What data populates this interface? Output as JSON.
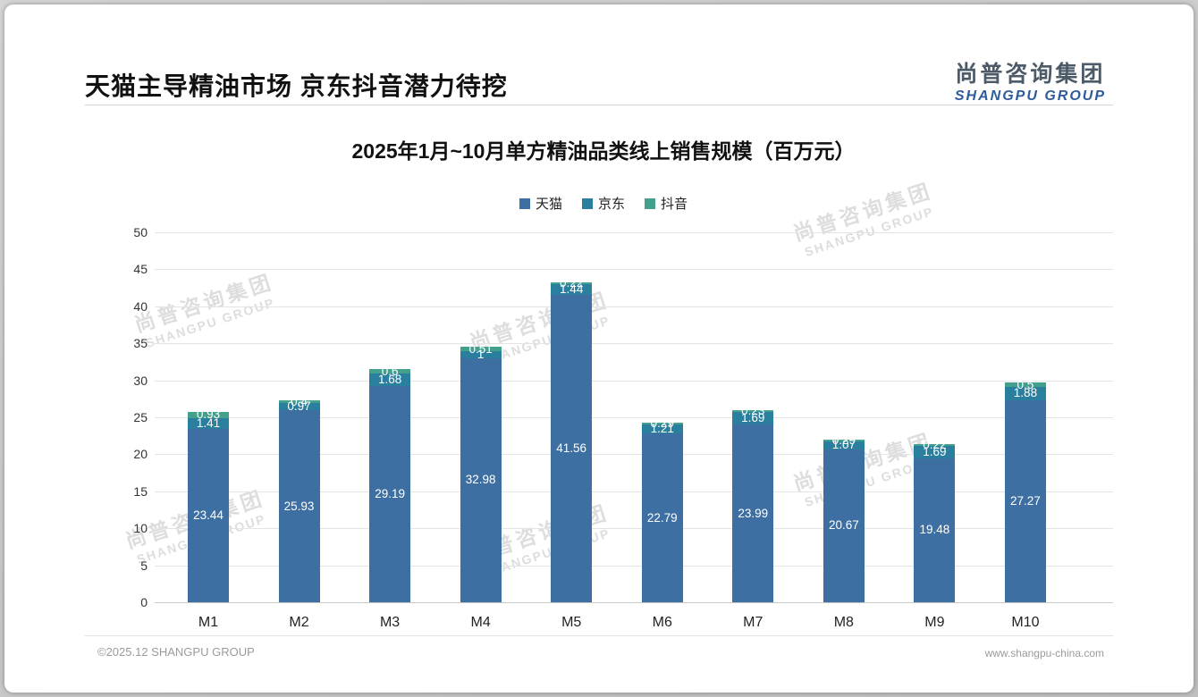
{
  "page": {
    "title": "天猫主导精油市场 京东抖音潜力待挖",
    "logo": {
      "cn": "尚普咨询集团",
      "en": "SHANGPU GROUP"
    },
    "watermark": {
      "cn": "尚普咨询集团",
      "en": "SHANGPU GROUP"
    },
    "footer_left": "©2025.12 SHANGPU GROUP",
    "footer_right": "www.shangpu-china.com"
  },
  "chart_data": {
    "type": "bar",
    "stacked": true,
    "title": "2025年1月~10月单方精油品类线上销售规模（百万元）",
    "categories": [
      "M1",
      "M2",
      "M3",
      "M4",
      "M5",
      "M6",
      "M7",
      "M8",
      "M9",
      "M10"
    ],
    "series": [
      {
        "name": "天猫",
        "color": "#3e6fa3",
        "values": [
          23.44,
          25.93,
          29.19,
          32.98,
          41.56,
          22.79,
          23.99,
          20.67,
          19.48,
          27.27
        ],
        "labels": [
          "23.44",
          "25.93",
          "29.19",
          "32.98",
          "41.56",
          "22.79",
          "23.99",
          "20.67",
          "19.48",
          "27.27"
        ]
      },
      {
        "name": "京东",
        "color": "#2b7f9e",
        "values": [
          1.41,
          0.97,
          1.68,
          1,
          1.44,
          1.21,
          1.69,
          1.07,
          1.69,
          1.88
        ],
        "labels": [
          "1.41",
          "0.97",
          "1.68",
          "1",
          "1.44",
          "1.21",
          "1.69",
          "1.07",
          "1.69",
          "1.88"
        ]
      },
      {
        "name": "抖音",
        "color": "#43a08d",
        "values": [
          0.93,
          0.4,
          0.6,
          0.51,
          0.22,
          0.29,
          0.23,
          0.29,
          0.22,
          0.5
        ],
        "labels": [
          "0.93",
          "0.4",
          "0.6",
          "0.51",
          "0.22",
          "0.29",
          "0.23",
          "0.29",
          "0.22",
          "0.5"
        ]
      }
    ],
    "ylim": [
      0,
      50
    ],
    "ytick_step": 5,
    "grid": true,
    "legend_position": "top",
    "xlabel": "",
    "ylabel": ""
  }
}
